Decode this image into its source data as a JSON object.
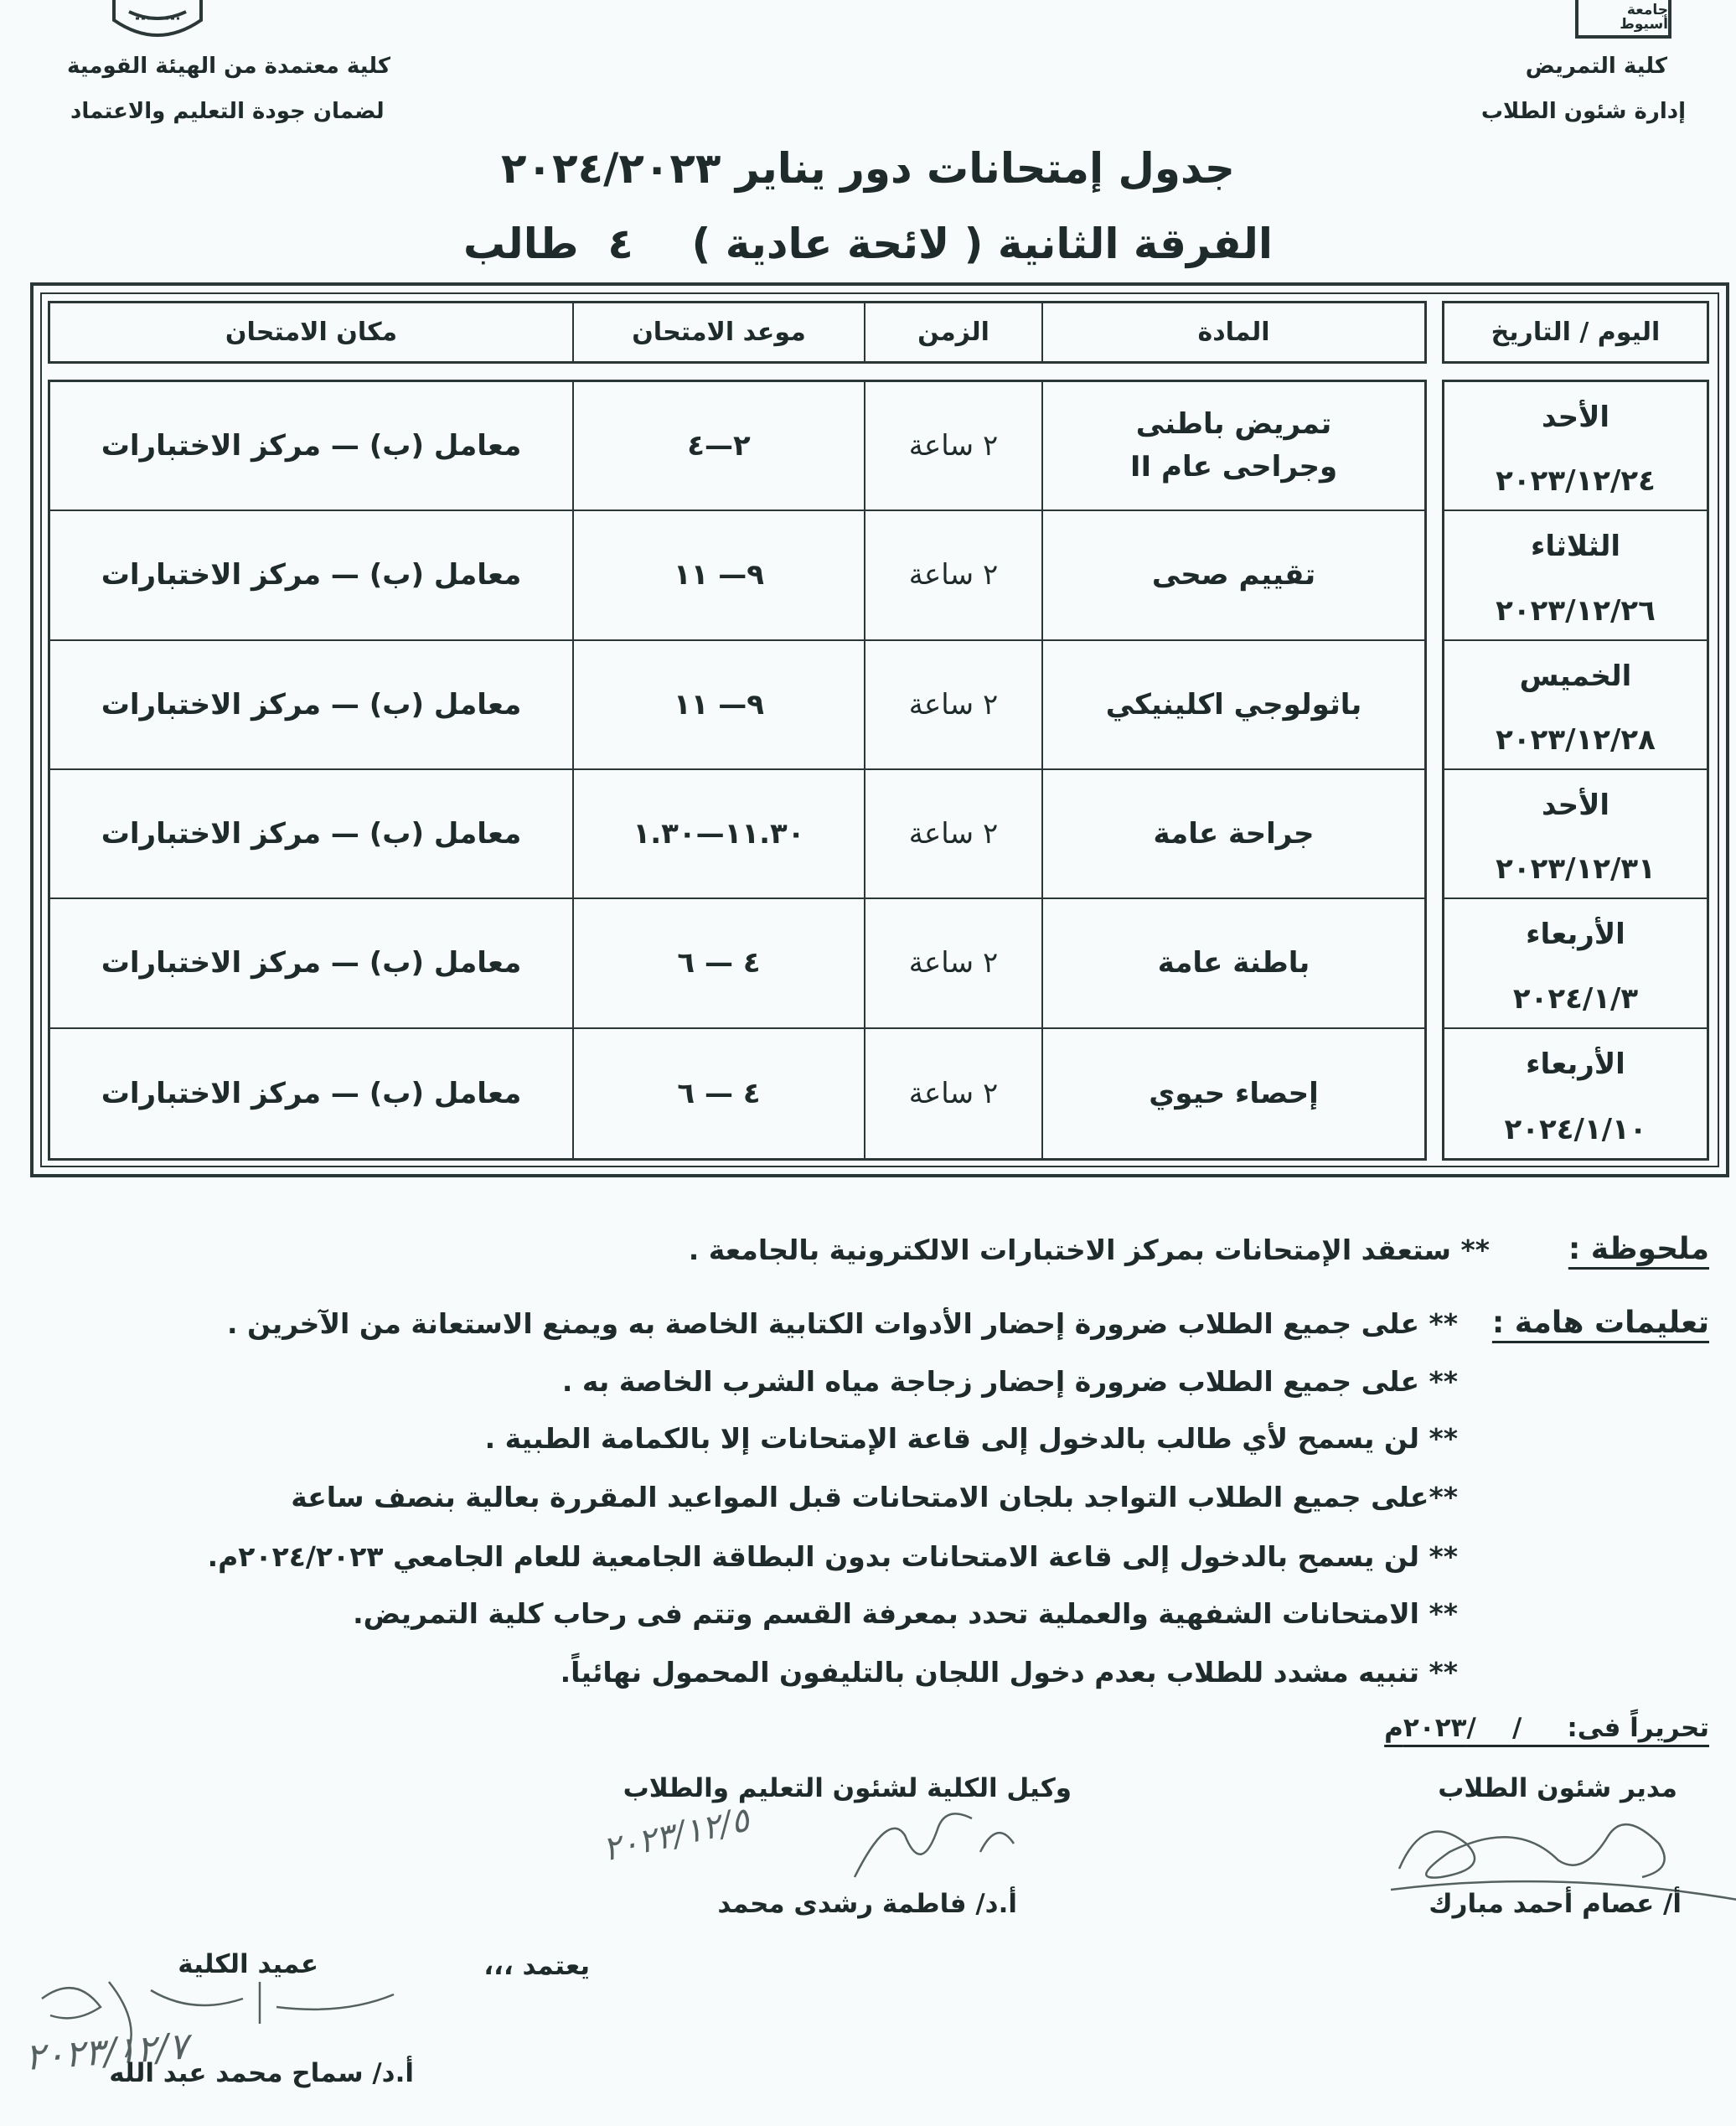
{
  "header": {
    "right_line1": "كلية التمريض",
    "right_line2": "إدارة شئون الطلاب",
    "left_line1": "كلية معتمدة من الهيئة القومية",
    "left_line2": "لضمان جودة التعليم والاعتماد",
    "right_logo_text": "جامعة أسيوط"
  },
  "title": "جدول إمتحانات دور يناير ٢٠٢٤/٢٠٢٣",
  "subtitle": "الفرقة الثانية ( لائحة عادية )    ٤  طالب",
  "table": {
    "headers": {
      "day_date": "اليوم / التاريخ",
      "subject": "المادة",
      "duration": "الزمن",
      "time": "موعد الامتحان",
      "location": "مكان الامتحان"
    },
    "rows": [
      {
        "day": "الأحد",
        "date": "٢٠٢٣/١٢/٢٤",
        "subject1": "تمريض باطنى",
        "subject2": "وجراحى عام II",
        "duration": "٢ ساعة",
        "time": "٢—٤",
        "location": "معامل (ب) — مركز الاختبارات"
      },
      {
        "day": "الثلاثاء",
        "date": "٢٠٢٣/١٢/٢٦",
        "subject1": "تقييم صحى",
        "subject2": "",
        "duration": "٢ ساعة",
        "time": "٩— ١١",
        "location": "معامل (ب) — مركز الاختبارات"
      },
      {
        "day": "الخميس",
        "date": "٢٠٢٣/١٢/٢٨",
        "subject1": "باثولوجي اكلينيكي",
        "subject2": "",
        "duration": "٢ ساعة",
        "time": "٩— ١١",
        "location": "معامل (ب) — مركز الاختبارات"
      },
      {
        "day": "الأحد",
        "date": "٢٠٢٣/١٢/٣١",
        "subject1": "جراحة عامة",
        "subject2": "",
        "duration": "٢ ساعة",
        "time": "١١.٣٠—١.٣٠",
        "location": "معامل (ب) — مركز الاختبارات"
      },
      {
        "day": "الأربعاء",
        "date": "٢٠٢٤/١/٣",
        "subject1": "باطنة عامة",
        "subject2": "",
        "duration": "٢ ساعة",
        "time": "٤ — ٦",
        "location": "معامل (ب) — مركز الاختبارات"
      },
      {
        "day": "الأربعاء",
        "date": "٢٠٢٤/١/١٠",
        "subject1": "إحصاء حيوي",
        "subject2": "",
        "duration": "٢ ساعة",
        "time": "٤ — ٦",
        "location": "معامل (ب) — مركز الاختبارات"
      }
    ]
  },
  "note": {
    "label": "ملحوظة :",
    "text": "** ستعقد الإمتحانات بمركز الاختبارات الالكترونية بالجامعة ."
  },
  "instructions": {
    "label": "تعليمات هامة :",
    "items": [
      "** على جميع الطلاب ضرورة إحضار الأدوات الكتابية الخاصة به ويمنع الاستعانة من الآخرين .",
      "** على جميع الطلاب ضرورة إحضار زجاجة مياه الشرب الخاصة به .",
      "** لن يسمح لأي طالب بالدخول إلى قاعة الإمتحانات إلا بالكمامة الطبية .",
      "**على جميع الطلاب التواجد بلجان الامتحانات قبل المواعيد المقررة بعالية بنصف ساعة",
      "** لن يسمح بالدخول إلى قاعة الامتحانات بدون البطاقة الجامعية للعام الجامعي ٢٠٢٤/٢٠٢٣م.",
      "** الامتحانات الشفهية والعملية تحدد بمعرفة القسم وتتم فى رحاب كلية التمريض.",
      "** تنبيه مشدد للطلاب بعدم دخول اللجان بالتليفون المحمول نهائياً."
    ]
  },
  "footer": {
    "written_on": "تحريراً فى:     /    /٢٠٢٣م",
    "student_affairs_title": "مدير شئون الطلاب",
    "student_affairs_name": "أ/ عصام أحمد مبارك",
    "vice_dean_title": "وكيل الكلية لشئون التعليم والطلاب",
    "vice_dean_name": "أ.د/ فاطمة رشدى محمد",
    "approved": "يعتمد ،،،",
    "dean_title": "عميد الكلية",
    "dean_name": "أ.د/ سماح محمد عبد الله",
    "vice_dean_signature_date": "٢٠٢٣/١٢/٥",
    "dean_signature_date": "٢٠٢٣/١٢/٧"
  },
  "colors": {
    "ink": "#1f2b2b",
    "paper": "#f8fbfb"
  }
}
